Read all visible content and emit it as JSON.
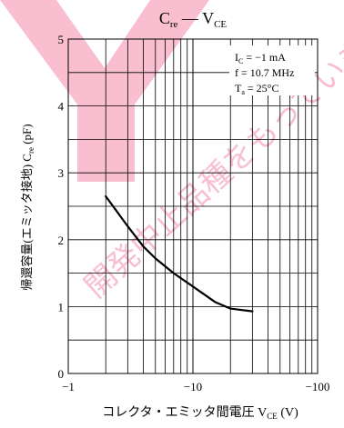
{
  "chart_data": {
    "type": "line",
    "title": {
      "main": "C",
      "main_sub": "re",
      "sep": " — V",
      "tail_sub": "CE"
    },
    "xlabel": {
      "text": "コレクタ・エミッタ間電圧 V",
      "sub": "CE",
      "unit": " (V)"
    },
    "ylabel": {
      "text": "帰還容量(エミッタ接地) C",
      "sub": "re",
      "unit": " (pF)"
    },
    "x_scale": "log-negative",
    "xlim": [
      -1,
      -100
    ],
    "ylim": [
      0,
      5
    ],
    "x_ticks": [
      "−1",
      "−10",
      "−100"
    ],
    "y_ticks": [
      "0",
      "1",
      "2",
      "3",
      "4",
      "5"
    ],
    "conditions": [
      {
        "key": "I",
        "sub": "C",
        "value": " = −1 mA"
      },
      {
        "key": "f = 10.7 MHz",
        "sub": "",
        "value": ""
      },
      {
        "key": "T",
        "sub": "a",
        "value": " = 25°C"
      }
    ],
    "watermark": "開発中止品種をもっています。",
    "grid": true,
    "series": [
      {
        "x": [
          -2,
          -3,
          -4,
          -5,
          -7,
          -10,
          -15,
          -20,
          -30
        ],
        "y": [
          2.65,
          2.2,
          1.9,
          1.72,
          1.5,
          1.3,
          1.07,
          0.97,
          0.93
        ]
      }
    ]
  }
}
